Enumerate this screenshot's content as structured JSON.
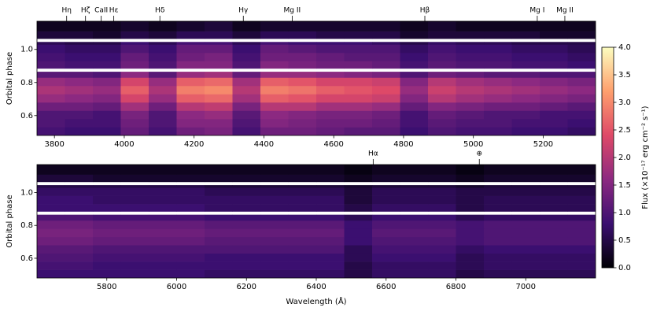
{
  "chart_data": {
    "type": "heatmap",
    "colormap": [
      "#000004",
      "#3b0f70",
      "#8c2981",
      "#de4968",
      "#fe9f6d",
      "#fcfdbf"
    ],
    "colorbar": {
      "label": "Flux (×10⁻¹⁷ erg cm⁻² s⁻¹)",
      "lim": [
        0,
        4
      ],
      "ticks": [
        {
          "value": 0,
          "label": "0.0"
        },
        0.5,
        {
          "value": 1,
          "label": "1.0"
        },
        1.5,
        {
          "value": 2,
          "label": "2.0"
        },
        2.5,
        {
          "value": 3,
          "label": "3.0"
        },
        3.5,
        {
          "value": 4,
          "label": "4.0"
        }
      ]
    },
    "panels": [
      {
        "ylabel": "Orbital phase",
        "xlim": [
          3750,
          5350
        ],
        "xticks": [
          3800,
          4000,
          4200,
          4400,
          4600,
          4800,
          5000,
          5200
        ],
        "ylim": [
          0.48,
          1.17
        ],
        "yticks": [
          0.6,
          0.8,
          {
            "value": 1,
            "label": "1.0"
          }
        ],
        "annotations": [
          {
            "label": "Hη",
            "x": 3835
          },
          {
            "label": "Hζ",
            "x": 3889
          },
          {
            "label": "CaII",
            "x": 3934
          },
          {
            "label": "Hε",
            "x": 3970
          },
          {
            "label": "Hδ",
            "x": 4102
          },
          {
            "label": "Hγ",
            "x": 4341
          },
          {
            "label": "Mg II",
            "x": 4481
          },
          {
            "label": "Hβ",
            "x": 4861
          },
          {
            "label": "Mg I",
            "x": 5183
          },
          {
            "label": "Mg II",
            "x": 5262
          }
        ],
        "xbins": [
          3750,
          3830,
          3910,
          3990,
          4070,
          4150,
          4230,
          4310,
          4390,
          4470,
          4550,
          4630,
          4710,
          4790,
          4870,
          4950,
          5030,
          5110,
          5190,
          5270,
          5350
        ],
        "ybins": [
          0.48,
          0.53,
          0.58,
          0.63,
          0.68,
          0.73,
          0.78,
          0.83,
          0.865,
          0.885,
          0.93,
          0.98,
          1.03,
          1.045,
          1.065,
          1.11,
          1.17
        ],
        "z": [
          [
            0.9,
            0.8,
            0.8,
            1.2,
            0.9,
            1.3,
            1.4,
            0.9,
            1.3,
            1.3,
            1.2,
            1.1,
            1.1,
            0.8,
            1.0,
            0.9,
            0.9,
            0.8,
            0.8,
            0.7
          ],
          [
            1.0,
            0.9,
            0.9,
            1.3,
            1.0,
            1.5,
            1.5,
            1.0,
            1.5,
            1.4,
            1.3,
            1.3,
            1.2,
            0.9,
            1.1,
            1.0,
            1.0,
            0.9,
            0.9,
            0.8
          ],
          [
            1.0,
            1.0,
            0.9,
            1.4,
            1.0,
            1.6,
            1.7,
            1.1,
            1.6,
            1.5,
            1.4,
            1.4,
            1.3,
            0.9,
            1.2,
            1.1,
            1.0,
            1.0,
            0.9,
            0.9
          ],
          [
            1.3,
            1.3,
            1.2,
            1.8,
            1.3,
            2.0,
            2.1,
            1.4,
            2.0,
            2.0,
            1.8,
            1.8,
            1.7,
            1.2,
            1.5,
            1.4,
            1.3,
            1.3,
            1.2,
            1.1
          ],
          [
            1.7,
            1.6,
            1.5,
            2.3,
            1.7,
            2.6,
            2.7,
            1.8,
            2.6,
            2.5,
            2.3,
            2.3,
            2.2,
            1.5,
            2.0,
            1.8,
            1.7,
            1.6,
            1.5,
            1.4
          ],
          [
            1.9,
            1.8,
            1.7,
            2.6,
            1.9,
            2.9,
            3.0,
            2.0,
            2.9,
            2.8,
            2.6,
            2.5,
            2.4,
            1.7,
            2.2,
            2.0,
            1.9,
            1.8,
            1.7,
            1.6
          ],
          [
            1.7,
            1.6,
            1.5,
            2.3,
            1.7,
            2.6,
            2.7,
            1.8,
            2.6,
            2.5,
            2.3,
            2.3,
            2.2,
            1.5,
            2.0,
            1.8,
            1.7,
            1.6,
            1.5,
            1.4
          ],
          [
            1.1,
            1.1,
            1.0,
            1.6,
            1.1,
            1.7,
            1.8,
            1.2,
            1.7,
            1.7,
            1.6,
            1.5,
            1.4,
            1.0,
            1.3,
            1.2,
            1.1,
            1.1,
            1.0,
            1.0
          ],
          null,
          [
            1.0,
            0.9,
            0.9,
            1.3,
            1.0,
            1.5,
            1.5,
            1.0,
            1.5,
            1.4,
            1.3,
            1.3,
            1.2,
            0.9,
            1.1,
            1.0,
            1.0,
            0.9,
            0.9,
            0.8
          ],
          [
            0.9,
            0.8,
            0.8,
            1.2,
            0.9,
            1.3,
            1.4,
            0.9,
            1.3,
            1.3,
            1.2,
            1.1,
            1.1,
            0.8,
            1.0,
            0.9,
            0.9,
            0.8,
            0.8,
            0.7
          ],
          [
            0.8,
            0.7,
            0.7,
            1.0,
            0.8,
            1.2,
            1.2,
            0.8,
            1.2,
            1.1,
            1.0,
            1.0,
            1.0,
            0.7,
            0.9,
            0.8,
            0.8,
            0.7,
            0.7,
            0.6
          ],
          [
            0.6,
            0.5,
            0.5,
            0.8,
            0.6,
            0.9,
            0.9,
            0.6,
            0.9,
            0.8,
            0.8,
            0.8,
            0.7,
            0.5,
            0.7,
            0.6,
            0.6,
            0.5,
            0.5,
            0.5
          ],
          null,
          [
            0.4,
            0.4,
            0.3,
            0.5,
            0.4,
            0.6,
            0.6,
            0.4,
            0.6,
            0.6,
            0.5,
            0.5,
            0.5,
            0.3,
            0.4,
            0.4,
            0.4,
            0.4,
            0.3,
            0.3
          ],
          [
            0.2,
            0.2,
            0.2,
            0.3,
            0.2,
            0.3,
            0.4,
            0.2,
            0.3,
            0.3,
            0.3,
            0.3,
            0.3,
            0.2,
            0.3,
            0.2,
            0.2,
            0.2,
            0.2,
            0.2
          ]
        ]
      },
      {
        "ylabel": "Orbital phase",
        "xlabel": "Wavelength (Å)",
        "xlim": [
          5600,
          7200
        ],
        "xticks": [
          5800,
          6000,
          6200,
          6400,
          6600,
          6800,
          7000
        ],
        "ylim": [
          0.48,
          1.17
        ],
        "yticks": [
          0.6,
          0.8,
          {
            "value": 1,
            "label": "1.0"
          }
        ],
        "annotations": [
          {
            "label": "Hα",
            "x": 6563
          },
          {
            "label": "⊕",
            "x": 6867
          }
        ],
        "xbins": [
          5600,
          5680,
          5760,
          5840,
          5920,
          6000,
          6080,
          6160,
          6240,
          6320,
          6400,
          6480,
          6560,
          6640,
          6720,
          6800,
          6880,
          6960,
          7040,
          7120,
          7200
        ],
        "ybins": [
          0.48,
          0.53,
          0.58,
          0.63,
          0.68,
          0.73,
          0.78,
          0.83,
          0.865,
          0.885,
          0.93,
          0.98,
          1.03,
          1.045,
          1.065,
          1.11,
          1.17
        ],
        "z": [
          [
            0.8,
            0.8,
            0.8,
            0.8,
            0.8,
            0.8,
            0.7,
            0.7,
            0.7,
            0.7,
            0.7,
            0.5,
            0.7,
            0.7,
            0.7,
            0.5,
            0.6,
            0.6,
            0.6,
            0.6
          ],
          [
            0.9,
            0.9,
            0.8,
            0.8,
            0.8,
            0.8,
            0.8,
            0.8,
            0.8,
            0.8,
            0.8,
            0.5,
            0.7,
            0.7,
            0.7,
            0.6,
            0.7,
            0.7,
            0.7,
            0.7
          ],
          [
            1.0,
            1.0,
            0.9,
            0.9,
            0.9,
            0.9,
            0.8,
            0.8,
            0.8,
            0.8,
            0.8,
            0.6,
            0.8,
            0.8,
            0.8,
            0.6,
            0.7,
            0.7,
            0.7,
            0.7
          ],
          [
            1.1,
            1.1,
            1.0,
            1.0,
            1.0,
            1.0,
            1.0,
            1.0,
            1.0,
            1.0,
            1.0,
            0.6,
            0.9,
            0.9,
            0.9,
            0.7,
            0.8,
            0.8,
            0.8,
            0.8
          ],
          [
            1.3,
            1.3,
            1.2,
            1.2,
            1.2,
            1.2,
            1.1,
            1.1,
            1.1,
            1.1,
            1.1,
            0.8,
            1.0,
            1.0,
            1.0,
            0.9,
            1.0,
            1.0,
            1.0,
            1.0
          ],
          [
            1.4,
            1.4,
            1.3,
            1.3,
            1.3,
            1.3,
            1.2,
            1.2,
            1.2,
            1.2,
            1.2,
            0.8,
            1.1,
            1.1,
            1.1,
            0.9,
            1.0,
            1.0,
            1.0,
            1.0
          ],
          [
            1.3,
            1.3,
            1.2,
            1.2,
            1.2,
            1.2,
            1.1,
            1.1,
            1.1,
            1.1,
            1.1,
            0.8,
            1.0,
            1.0,
            1.0,
            0.9,
            1.0,
            1.0,
            1.0,
            1.0
          ],
          [
            1.0,
            1.0,
            0.9,
            0.9,
            0.9,
            0.9,
            0.8,
            0.8,
            0.8,
            0.8,
            0.8,
            0.6,
            0.8,
            0.8,
            0.8,
            0.6,
            0.7,
            0.7,
            0.7,
            0.7
          ],
          null,
          [
            0.8,
            0.8,
            0.8,
            0.8,
            0.8,
            0.8,
            0.7,
            0.7,
            0.7,
            0.7,
            0.7,
            0.5,
            0.7,
            0.7,
            0.7,
            0.5,
            0.6,
            0.6,
            0.6,
            0.6
          ],
          [
            0.8,
            0.8,
            0.7,
            0.7,
            0.7,
            0.7,
            0.7,
            0.7,
            0.7,
            0.7,
            0.7,
            0.4,
            0.6,
            0.6,
            0.6,
            0.5,
            0.6,
            0.6,
            0.6,
            0.6
          ],
          [
            0.7,
            0.7,
            0.7,
            0.7,
            0.7,
            0.7,
            0.6,
            0.6,
            0.6,
            0.6,
            0.6,
            0.4,
            0.6,
            0.6,
            0.6,
            0.5,
            0.5,
            0.5,
            0.5,
            0.5
          ],
          [
            0.5,
            0.5,
            0.5,
            0.5,
            0.5,
            0.5,
            0.4,
            0.4,
            0.4,
            0.4,
            0.4,
            0.3,
            0.4,
            0.4,
            0.4,
            0.3,
            0.4,
            0.4,
            0.4,
            0.4
          ],
          null,
          [
            0.4,
            0.4,
            0.3,
            0.3,
            0.3,
            0.3,
            0.3,
            0.3,
            0.3,
            0.3,
            0.3,
            0.2,
            0.3,
            0.3,
            0.3,
            0.2,
            0.3,
            0.3,
            0.3,
            0.3
          ],
          [
            0.2,
            0.2,
            0.2,
            0.2,
            0.2,
            0.2,
            0.2,
            0.2,
            0.2,
            0.2,
            0.2,
            0.1,
            0.2,
            0.2,
            0.2,
            0.1,
            0.2,
            0.2,
            0.2,
            0.2
          ]
        ]
      }
    ]
  }
}
